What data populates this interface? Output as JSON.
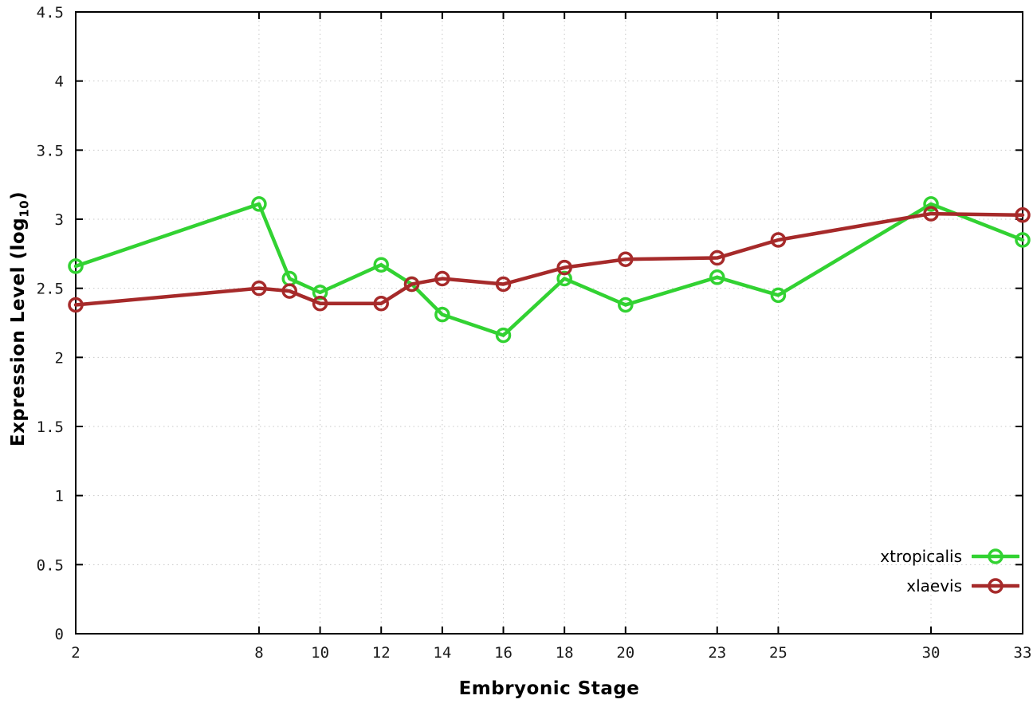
{
  "chart_data": {
    "type": "line",
    "x": [
      2,
      8,
      9,
      10,
      12,
      13,
      14,
      16,
      18,
      20,
      23,
      25,
      30,
      33
    ],
    "series": [
      {
        "name": "xtropicalis",
        "color": "#32d232",
        "values": [
          2.66,
          3.11,
          2.57,
          2.47,
          2.67,
          2.53,
          2.31,
          2.16,
          2.57,
          2.38,
          2.58,
          2.45,
          3.11,
          2.85
        ]
      },
      {
        "name": "xlaevis",
        "color": "#a62a2a",
        "values": [
          2.38,
          2.5,
          2.48,
          2.39,
          2.39,
          2.53,
          2.57,
          2.53,
          2.65,
          2.71,
          2.72,
          2.85,
          3.04,
          3.03
        ]
      }
    ],
    "title": "",
    "xlabel": "Embryonic Stage",
    "ylabel": "Expression Level (log10)",
    "ylabel_parts": {
      "prefix": "Expression Level (log",
      "sub": "10",
      "suffix": ")"
    },
    "xlim": [
      2,
      33
    ],
    "ylim": [
      0,
      4.5
    ],
    "xticks": [
      2,
      8,
      10,
      12,
      14,
      16,
      18,
      20,
      23,
      25,
      30,
      33
    ],
    "xtick_labels": [
      "2",
      "8",
      "10",
      "12",
      "14",
      "16",
      "18",
      "20",
      "23",
      "25",
      "30",
      "33"
    ],
    "yticks": [
      0,
      0.5,
      1,
      1.5,
      2,
      2.5,
      3,
      3.5,
      4,
      4.5
    ],
    "ytick_labels": [
      "0",
      "0.5",
      "1",
      "1.5",
      "2",
      "2.5",
      "3",
      "3.5",
      "4",
      "4.5"
    ],
    "grid": true,
    "legend_position": "bottom-right",
    "background_color": "#ffffff",
    "grid_color": "#c9c9c9",
    "axis_color": "#000000",
    "tick_label_color": "#1a1a1a"
  }
}
